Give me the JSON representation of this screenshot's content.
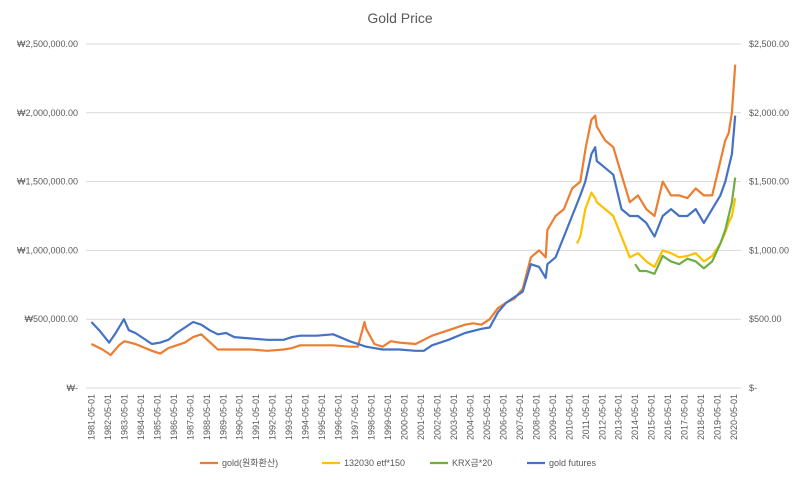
{
  "chart_data": {
    "type": "line",
    "title": "Gold Price",
    "x_tick_labels": [
      "1981-05-01",
      "1982-05-01",
      "1983-05-01",
      "1984-05-01",
      "1985-05-01",
      "1986-05-01",
      "1987-05-01",
      "1988-05-01",
      "1989-05-01",
      "1990-05-01",
      "1991-05-01",
      "1992-05-01",
      "1993-05-01",
      "1994-05-01",
      "1995-05-01",
      "1996-05-01",
      "1997-05-01",
      "1998-05-01",
      "1999-05-01",
      "2000-05-01",
      "2001-05-01",
      "2002-05-01",
      "2003-05-01",
      "2004-05-01",
      "2005-05-01",
      "2006-05-01",
      "2007-05-01",
      "2008-05-01",
      "2009-05-01",
      "2010-05-01",
      "2011-05-01",
      "2012-05-01",
      "2013-05-01",
      "2014-05-01",
      "2015-05-01",
      "2016-05-01",
      "2017-05-01",
      "2018-05-01",
      "2019-05-01",
      "2020-05-01"
    ],
    "left_axis": {
      "ylim": [
        0,
        2500000
      ],
      "ticks": [
        0,
        500000,
        1000000,
        1500000,
        2000000,
        2500000
      ],
      "tick_labels": [
        "₩-",
        "₩500,000.00",
        "₩1,000,000.00",
        "₩1,500,000.00",
        "₩2,000,000.00",
        "₩2,500,000.00"
      ]
    },
    "right_axis": {
      "ylim": [
        0,
        2500
      ],
      "ticks": [
        0,
        500,
        1000,
        1500,
        2000,
        2500
      ],
      "tick_labels": [
        "$-",
        "$500.00",
        "$1,000.00",
        "$1,500.00",
        "$2,000.00",
        "$2,500.00"
      ]
    },
    "grid": true,
    "legend_position": "bottom",
    "series": [
      {
        "name": "gold(원화환산)",
        "axis": "left",
        "color": "#ED7D31",
        "x": [
          1981.33,
          1982.0,
          1982.5,
          1983.0,
          1983.33,
          1984.0,
          1985.0,
          1985.5,
          1986.0,
          1987.0,
          1987.5,
          1988.0,
          1989.0,
          1990.0,
          1991.0,
          1992.0,
          1993.0,
          1993.5,
          1994.0,
          1995.0,
          1996.0,
          1997.0,
          1997.5,
          1997.9,
          1998.0,
          1998.5,
          1999.0,
          1999.5,
          2000.0,
          2001.0,
          2001.5,
          2002.0,
          2003.0,
          2004.0,
          2004.5,
          2005.0,
          2005.5,
          2006.0,
          2006.5,
          2007.0,
          2007.5,
          2008.0,
          2008.5,
          2008.9,
          2009.0,
          2009.5,
          2010.0,
          2010.5,
          2011.0,
          2011.33,
          2011.67,
          2011.9,
          2012.0,
          2012.5,
          2013.0,
          2013.5,
          2014.0,
          2014.5,
          2015.0,
          2015.5,
          2016.0,
          2016.5,
          2017.0,
          2017.5,
          2018.0,
          2018.5,
          2019.0,
          2019.5,
          2019.8,
          2020.0,
          2020.2,
          2020.4
        ],
        "values": [
          320000,
          280000,
          240000,
          310000,
          340000,
          320000,
          270000,
          250000,
          290000,
          330000,
          370000,
          390000,
          280000,
          280000,
          280000,
          270000,
          280000,
          290000,
          310000,
          310000,
          310000,
          300000,
          300000,
          480000,
          430000,
          320000,
          300000,
          340000,
          330000,
          320000,
          350000,
          380000,
          420000,
          460000,
          470000,
          460000,
          500000,
          580000,
          620000,
          650000,
          720000,
          950000,
          1000000,
          950000,
          1150000,
          1250000,
          1300000,
          1450000,
          1500000,
          1750000,
          1950000,
          1980000,
          1900000,
          1800000,
          1750000,
          1550000,
          1350000,
          1400000,
          1300000,
          1250000,
          1500000,
          1400000,
          1400000,
          1380000,
          1450000,
          1400000,
          1400000,
          1650000,
          1800000,
          1850000,
          2000000,
          2350000
        ]
      },
      {
        "name": "132030 etf*150",
        "axis": "left",
        "color": "#FFC000",
        "x": [
          2010.8,
          2011.0,
          2011.3,
          2011.67,
          2011.9,
          2012.0,
          2012.5,
          2013.0,
          2013.5,
          2014.0,
          2014.5,
          2015.0,
          2015.5,
          2016.0,
          2016.5,
          2017.0,
          2017.5,
          2018.0,
          2018.5,
          2019.0,
          2019.5,
          2019.8,
          2020.0,
          2020.2,
          2020.4
        ],
        "values": [
          1050000,
          1100000,
          1300000,
          1420000,
          1380000,
          1350000,
          1300000,
          1250000,
          1100000,
          950000,
          980000,
          920000,
          880000,
          1000000,
          980000,
          950000,
          960000,
          980000,
          920000,
          960000,
          1050000,
          1130000,
          1200000,
          1250000,
          1380000
        ]
      },
      {
        "name": "KRX금*20",
        "axis": "left",
        "color": "#70AD47",
        "x": [
          2014.33,
          2014.6,
          2015.0,
          2015.5,
          2016.0,
          2016.5,
          2017.0,
          2017.5,
          2018.0,
          2018.5,
          2019.0,
          2019.5,
          2019.8,
          2020.0,
          2020.2,
          2020.4
        ],
        "values": [
          900000,
          850000,
          850000,
          830000,
          960000,
          920000,
          900000,
          940000,
          920000,
          870000,
          920000,
          1050000,
          1150000,
          1250000,
          1350000,
          1530000
        ]
      },
      {
        "name": "gold futures",
        "axis": "right",
        "color": "#4472C4",
        "x": [
          1981.33,
          1981.8,
          1982.4,
          1982.8,
          1983.3,
          1983.6,
          1984.0,
          1984.5,
          1985.0,
          1985.5,
          1986.0,
          1986.5,
          1987.0,
          1987.5,
          1988.0,
          1988.5,
          1989.0,
          1989.5,
          1990.0,
          1991.0,
          1992.0,
          1993.0,
          1993.5,
          1994.0,
          1995.0,
          1996.0,
          1997.0,
          1997.5,
          1998.0,
          1999.0,
          1999.5,
          2000.0,
          2001.0,
          2001.5,
          2002.0,
          2002.5,
          2003.0,
          2004.0,
          2005.0,
          2005.5,
          2006.0,
          2006.5,
          2007.0,
          2007.5,
          2008.0,
          2008.5,
          2008.9,
          2009.0,
          2009.5,
          2010.0,
          2010.5,
          2011.0,
          2011.3,
          2011.67,
          2011.9,
          2012.0,
          2012.5,
          2013.0,
          2013.5,
          2014.0,
          2014.5,
          2015.0,
          2015.5,
          2016.0,
          2016.5,
          2017.0,
          2017.5,
          2018.0,
          2018.5,
          2019.0,
          2019.5,
          2019.8,
          2020.0,
          2020.2,
          2020.4
        ],
        "values": [
          480,
          420,
          330,
          400,
          500,
          420,
          400,
          360,
          320,
          330,
          350,
          400,
          440,
          480,
          460,
          420,
          390,
          400,
          370,
          360,
          350,
          350,
          370,
          380,
          380,
          390,
          340,
          320,
          300,
          280,
          280,
          280,
          270,
          270,
          310,
          330,
          350,
          400,
          430,
          440,
          550,
          620,
          660,
          700,
          900,
          880,
          800,
          900,
          950,
          1100,
          1250,
          1400,
          1500,
          1700,
          1750,
          1650,
          1600,
          1550,
          1300,
          1250,
          1250,
          1200,
          1100,
          1250,
          1300,
          1250,
          1250,
          1300,
          1200,
          1300,
          1400,
          1500,
          1600,
          1700,
          1980
        ]
      }
    ]
  }
}
